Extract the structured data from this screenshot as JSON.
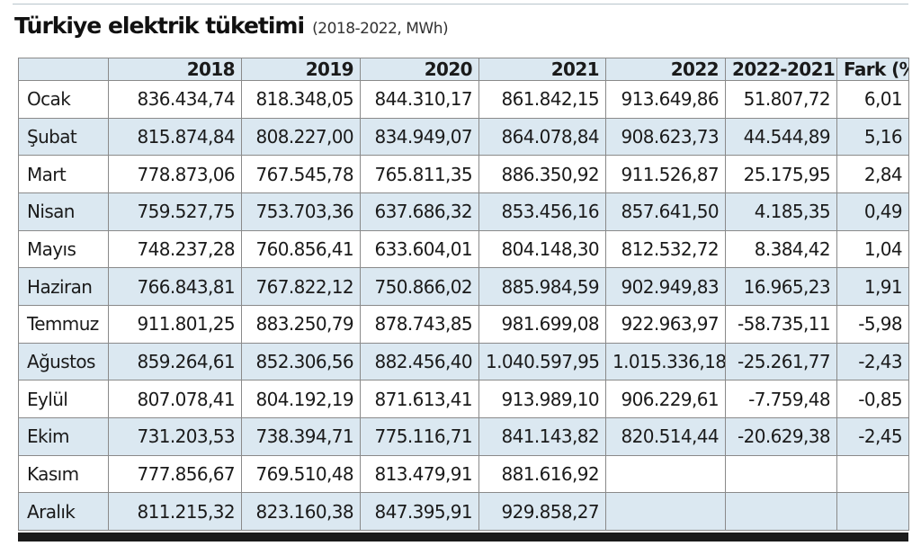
{
  "title": "Türkiye elektrik tüketimi",
  "subtitle": "(2018-2022, MWh)",
  "table": {
    "headers": [
      "",
      "2018",
      "2019",
      "2020",
      "2021",
      "2022",
      "2022-2021",
      "Fark (%)"
    ],
    "rows": [
      [
        "Ocak",
        "836.434,74",
        "818.348,05",
        "844.310,17",
        "861.842,15",
        "913.649,86",
        "51.807,72",
        "6,01"
      ],
      [
        "Şubat",
        "815.874,84",
        "808.227,00",
        "834.949,07",
        "864.078,84",
        "908.623,73",
        "44.544,89",
        "5,16"
      ],
      [
        "Mart",
        "778.873,06",
        "767.545,78",
        "765.811,35",
        "886.350,92",
        "911.526,87",
        "25.175,95",
        "2,84"
      ],
      [
        "Nisan",
        "759.527,75",
        "753.703,36",
        "637.686,32",
        "853.456,16",
        "857.641,50",
        "4.185,35",
        "0,49"
      ],
      [
        "Mayıs",
        "748.237,28",
        "760.856,41",
        "633.604,01",
        "804.148,30",
        "812.532,72",
        "8.384,42",
        "1,04"
      ],
      [
        "Haziran",
        "766.843,81",
        "767.822,12",
        "750.866,02",
        "885.984,59",
        "902.949,83",
        "16.965,23",
        "1,91"
      ],
      [
        "Temmuz",
        "911.801,25",
        "883.250,79",
        "878.743,85",
        "981.699,08",
        "922.963,97",
        "-58.735,11",
        "-5,98"
      ],
      [
        "Ağustos",
        "859.264,61",
        "852.306,56",
        "882.456,40",
        "1.040.597,95",
        "1.015.336,18",
        "-25.261,77",
        "-2,43"
      ],
      [
        "Eylül",
        "807.078,41",
        "804.192,19",
        "871.613,41",
        "913.989,10",
        "906.229,61",
        "-7.759,48",
        "-0,85"
      ],
      [
        "Ekim",
        "731.203,53",
        "738.394,71",
        "775.116,71",
        "841.143,82",
        "820.514,44",
        "-20.629,38",
        "-2,45"
      ],
      [
        "Kasım",
        "777.856,67",
        "769.510,48",
        "813.479,91",
        "881.616,92",
        "",
        "",
        ""
      ],
      [
        "Aralık",
        "811.215,32",
        "823.160,38",
        "847.395,91",
        "929.858,27",
        "",
        "",
        ""
      ]
    ]
  },
  "colors": {
    "shade": "#dbe8f1",
    "border": "#8a8a8a",
    "bar": "#1b1b1b"
  }
}
